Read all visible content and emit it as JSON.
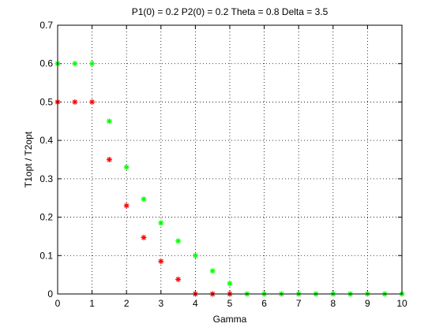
{
  "chart_data": {
    "type": "scatter",
    "title": "P1(0) = 0.2 P2(0) = 0.2 Theta = 0.8 Delta = 3.5",
    "xlabel": "Gamma",
    "ylabel": "T1opt / T2opt",
    "xlim": [
      0,
      10
    ],
    "ylim": [
      0,
      0.7
    ],
    "xticks": [
      "0",
      "1",
      "2",
      "3",
      "4",
      "5",
      "6",
      "7",
      "8",
      "9",
      "10"
    ],
    "yticks": [
      "0",
      "0.1",
      "0.2",
      "0.3",
      "0.4",
      "0.5",
      "0.6",
      "0.7"
    ],
    "grid": true,
    "marker": "asterisk",
    "series": [
      {
        "color": "#ff0000",
        "x": [
          0,
          0.5,
          1,
          1.5,
          2,
          2.5,
          3,
          3.5,
          4,
          4.5,
          5
        ],
        "y": [
          0.5,
          0.5,
          0.5,
          0.35,
          0.23,
          0.147,
          0.085,
          0.038,
          0,
          0,
          0
        ]
      },
      {
        "color": "#00ff00",
        "x": [
          0,
          0.5,
          1,
          1.5,
          2,
          2.5,
          3,
          3.5,
          4,
          4.5,
          5,
          5.5,
          6,
          6.5,
          7,
          7.5,
          8,
          8.5,
          9,
          9.5,
          10
        ],
        "y": [
          0.6,
          0.6,
          0.6,
          0.45,
          0.33,
          0.247,
          0.185,
          0.138,
          0.1,
          0.06,
          0.027,
          0,
          0,
          0,
          0,
          0,
          0,
          0,
          0,
          0,
          0
        ]
      }
    ]
  }
}
